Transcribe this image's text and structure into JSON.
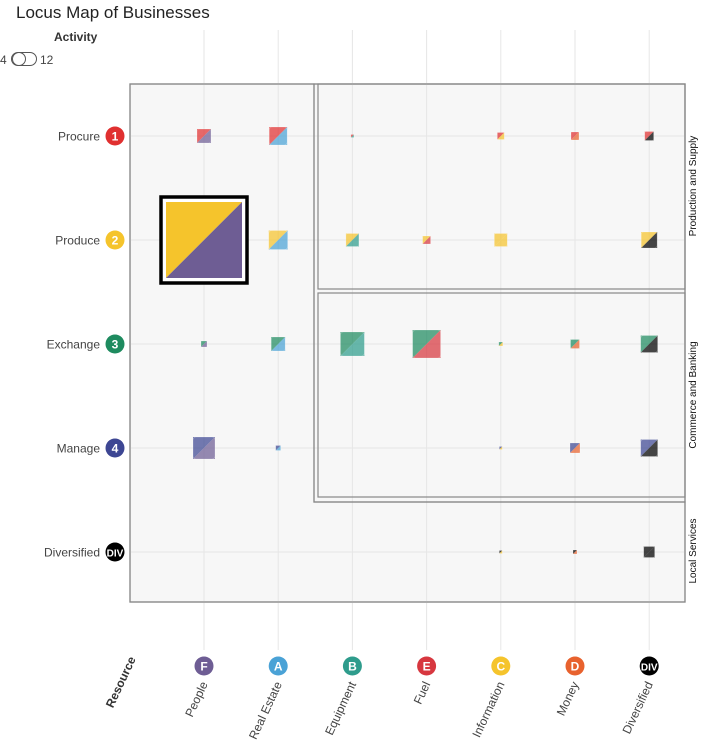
{
  "title": "Locus Map of Businesses",
  "toggle": {
    "label": "Activity",
    "min": "4",
    "max": "12"
  },
  "colors": {
    "red": "#e03030",
    "yellow": "#f5c42c",
    "green": "#1e8b5f",
    "navy": "#3d4693",
    "purple": "#6e5d94",
    "blue": "#4aa2d6",
    "teal": "#2e9c8c",
    "crimson": "#d7373f",
    "orange": "#e8622e",
    "black": "#000000",
    "region_fill": "#f7f7f7",
    "region_stroke": "#888888"
  },
  "chart_data": {
    "type": "scatter",
    "rows": [
      {
        "label": "Procure",
        "badge": "1",
        "color": "#e03030"
      },
      {
        "label": "Produce",
        "badge": "2",
        "color": "#f5c42c"
      },
      {
        "label": "Exchange",
        "badge": "3",
        "color": "#1e8b5f"
      },
      {
        "label": "Manage",
        "badge": "4",
        "color": "#3d4693"
      },
      {
        "label": "Diversified",
        "badge": "DIV",
        "color": "#000000"
      }
    ],
    "columns": [
      {
        "label": "People",
        "badge": "F",
        "color": "#6e5d94"
      },
      {
        "label": "Real Estate",
        "badge": "A",
        "color": "#4aa2d6"
      },
      {
        "label": "Equipment",
        "badge": "B",
        "color": "#2e9c8c"
      },
      {
        "label": "Fuel",
        "badge": "E",
        "color": "#d7373f"
      },
      {
        "label": "Information",
        "badge": "C",
        "color": "#f5c42c"
      },
      {
        "label": "Money",
        "badge": "D",
        "color": "#e8622e"
      },
      {
        "label": "Diversified",
        "badge": "DIV",
        "color": "#000000"
      }
    ],
    "x_axis_title": "Resource",
    "regions": [
      {
        "label": "Production and Supply",
        "rows": [
          1,
          2
        ],
        "cols": [
          3,
          7
        ]
      },
      {
        "label": "Commerce and Banking",
        "rows": [
          3,
          4
        ],
        "cols": [
          3,
          7
        ]
      },
      {
        "label": "Local Services",
        "rows": [
          5,
          5
        ],
        "cols": [
          1,
          7
        ]
      }
    ],
    "points": [
      {
        "row": 1,
        "col": 1,
        "size": 14
      },
      {
        "row": 1,
        "col": 2,
        "size": 18
      },
      {
        "row": 1,
        "col": 3,
        "size": 3
      },
      {
        "row": 1,
        "col": 5,
        "size": 7
      },
      {
        "row": 1,
        "col": 6,
        "size": 8
      },
      {
        "row": 1,
        "col": 7,
        "size": 9
      },
      {
        "row": 2,
        "col": 1,
        "size": 76,
        "highlight": true
      },
      {
        "row": 2,
        "col": 2,
        "size": 19
      },
      {
        "row": 2,
        "col": 3,
        "size": 13
      },
      {
        "row": 2,
        "col": 4,
        "size": 8
      },
      {
        "row": 2,
        "col": 5,
        "size": 13
      },
      {
        "row": 2,
        "col": 7,
        "size": 16
      },
      {
        "row": 3,
        "col": 1,
        "size": 6
      },
      {
        "row": 3,
        "col": 2,
        "size": 14
      },
      {
        "row": 3,
        "col": 3,
        "size": 24
      },
      {
        "row": 3,
        "col": 4,
        "size": 28
      },
      {
        "row": 3,
        "col": 5,
        "size": 4
      },
      {
        "row": 3,
        "col": 6,
        "size": 9
      },
      {
        "row": 3,
        "col": 7,
        "size": 17
      },
      {
        "row": 4,
        "col": 1,
        "size": 22
      },
      {
        "row": 4,
        "col": 2,
        "size": 5
      },
      {
        "row": 4,
        "col": 5,
        "size": 3
      },
      {
        "row": 4,
        "col": 6,
        "size": 10
      },
      {
        "row": 4,
        "col": 7,
        "size": 17
      },
      {
        "row": 5,
        "col": 5,
        "size": 3
      },
      {
        "row": 5,
        "col": 6,
        "size": 4
      },
      {
        "row": 5,
        "col": 7,
        "size": 11
      }
    ]
  }
}
